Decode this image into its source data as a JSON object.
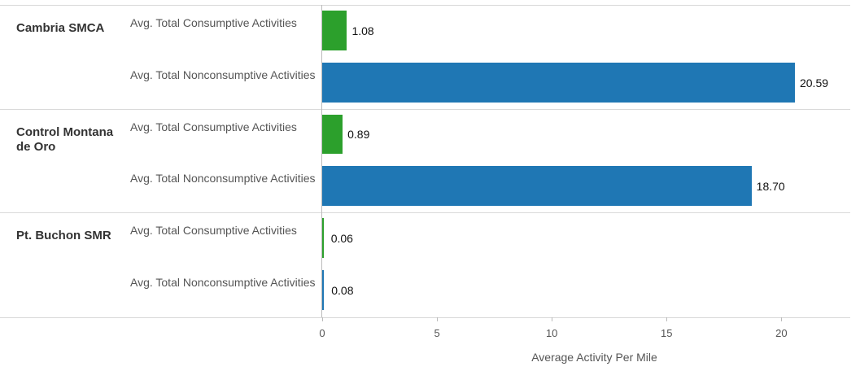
{
  "chart_data": {
    "type": "bar",
    "orientation": "horizontal",
    "categories": [
      "Cambria SMCA",
      "Control Montana de Oro",
      "Pt. Buchon SMR"
    ],
    "series": [
      {
        "name": "Avg. Total Consumptive Activities",
        "color": "#2ca02c",
        "values": [
          1.08,
          0.89,
          0.06
        ],
        "value_labels": [
          "1.08",
          "0.89",
          "0.06"
        ]
      },
      {
        "name": "Avg. Total Nonconsumptive Activities",
        "color": "#1f77b4",
        "values": [
          20.59,
          18.7,
          0.08
        ],
        "value_labels": [
          "20.59",
          "18.70",
          "0.08"
        ]
      }
    ],
    "xlabel": "Average Activity Per Mile",
    "xlim": [
      0,
      23
    ],
    "xticks": [
      0,
      5,
      10,
      15,
      20
    ],
    "grid": false
  }
}
